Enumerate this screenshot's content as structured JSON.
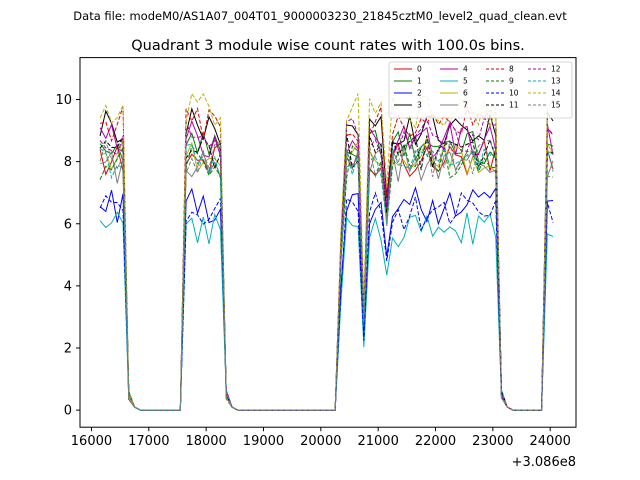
{
  "chart_data": {
    "type": "line",
    "suptitle": "Data file: modeM0/AS1A07_004T01_9000003230_21845cztM0_level2_quad_clean.evt",
    "title": "Quadrant 3 module wise count rates with 100.0s bins.",
    "xlabel": "",
    "ylabel": "",
    "x_offset_label": "+3.086e8",
    "xlim": [
      15800,
      24450
    ],
    "ylim": [
      -0.55,
      11.35
    ],
    "xticks": [
      16000,
      17000,
      18000,
      19000,
      20000,
      21000,
      22000,
      23000,
      24000
    ],
    "xtick_labels": [
      "16000",
      "17000",
      "18000",
      "19000",
      "20000",
      "21000",
      "22000",
      "23000",
      "24000"
    ],
    "yticks": [
      0,
      2,
      4,
      6,
      8,
      10
    ],
    "ytick_labels": [
      "0",
      "2",
      "4",
      "6",
      "8",
      "10"
    ],
    "legend": {
      "placement": "top-right",
      "columns": 4
    },
    "x_segments": [
      {
        "start": 16150,
        "end": 24050,
        "step": 100
      }
    ],
    "active_windows": [
      [
        16150,
        16550
      ],
      [
        17650,
        18250
      ],
      [
        20350,
        23050
      ],
      [
        23950,
        24050
      ]
    ],
    "series": [
      {
        "name": "0",
        "color": "#e00000",
        "dash": false,
        "base": 8.1
      },
      {
        "name": "1",
        "color": "#008000",
        "dash": false,
        "base": 8.5
      },
      {
        "name": "2",
        "color": "#0000ff",
        "dash": false,
        "base": 6.6
      },
      {
        "name": "3",
        "color": "#000000",
        "dash": false,
        "base": 9.1
      },
      {
        "name": "4",
        "color": "#b000b0",
        "dash": false,
        "base": 8.7
      },
      {
        "name": "5",
        "color": "#00b3b3",
        "dash": false,
        "base": 5.8
      },
      {
        "name": "6",
        "color": "#b3b300",
        "dash": false,
        "base": 8.2
      },
      {
        "name": "7",
        "color": "#7f7f7f",
        "dash": false,
        "base": 7.9
      },
      {
        "name": "8",
        "color": "#e00000",
        "dash": true,
        "base": 9.2
      },
      {
        "name": "9",
        "color": "#008000",
        "dash": true,
        "base": 8.0
      },
      {
        "name": "10",
        "color": "#0000ff",
        "dash": true,
        "base": 6.4
      },
      {
        "name": "11",
        "color": "#000000",
        "dash": true,
        "base": 8.3
      },
      {
        "name": "12",
        "color": "#b000b0",
        "dash": true,
        "base": 8.8
      },
      {
        "name": "13",
        "color": "#00b3b3",
        "dash": true,
        "base": 8.0
      },
      {
        "name": "14",
        "color": "#b3b300",
        "dash": true,
        "base": 9.6
      },
      {
        "name": "15",
        "color": "#7f7f7f",
        "dash": true,
        "base": 8.1
      }
    ]
  }
}
